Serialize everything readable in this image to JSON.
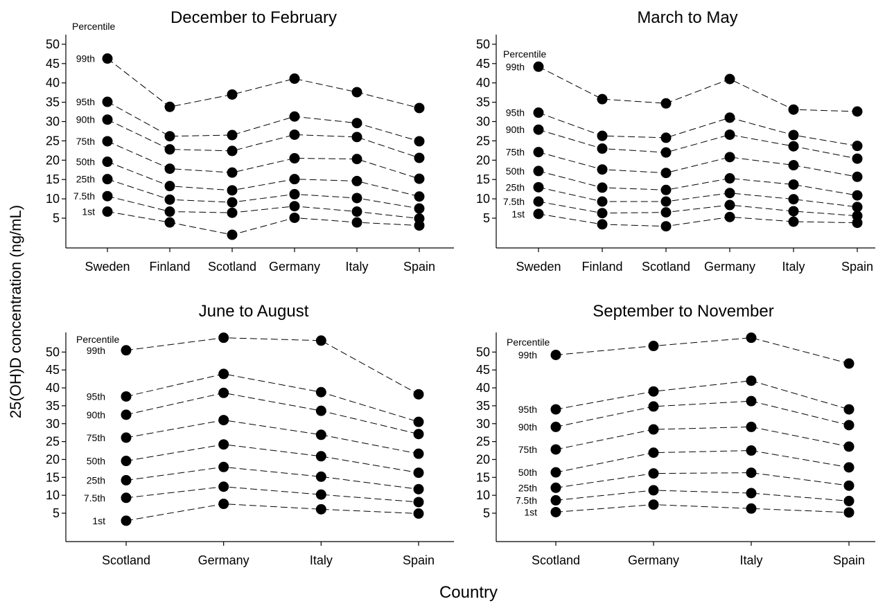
{
  "figure": {
    "ylabel": "25(OH)D concentration (ng/mL)",
    "xlabel": "Country",
    "percentile_heading": "Percentile"
  },
  "chart_data": [
    {
      "type": "line",
      "title": "December to February",
      "categories": [
        "Sweden",
        "Finland",
        "Scotland",
        "Germany",
        "Italy",
        "Spain"
      ],
      "yticks": [
        5,
        10,
        15,
        20,
        25,
        30,
        35,
        40,
        45,
        50
      ],
      "ylim": [
        0,
        52
      ],
      "grid": false,
      "series": [
        {
          "name": "99th",
          "values": [
            46.3,
            33.8,
            37.0,
            41.1,
            37.6,
            33.5
          ]
        },
        {
          "name": "95th",
          "values": [
            35.1,
            26.2,
            26.5,
            31.3,
            29.6,
            24.9
          ]
        },
        {
          "name": "90th",
          "values": [
            30.5,
            22.8,
            22.4,
            26.6,
            26.0,
            20.6
          ]
        },
        {
          "name": "75th",
          "values": [
            24.9,
            17.8,
            16.8,
            20.5,
            20.3,
            15.2
          ]
        },
        {
          "name": "50th",
          "values": [
            19.6,
            13.3,
            12.2,
            15.1,
            14.6,
            10.6
          ]
        },
        {
          "name": "25th",
          "values": [
            15.1,
            9.8,
            9.1,
            11.2,
            10.2,
            7.5
          ]
        },
        {
          "name": "7.5th",
          "values": [
            10.7,
            6.7,
            6.4,
            8.1,
            6.7,
            4.9
          ]
        },
        {
          "name": "1st",
          "values": [
            6.7,
            3.9,
            0.7,
            5.1,
            3.9,
            3.1
          ]
        }
      ]
    },
    {
      "type": "line",
      "title": "March to May",
      "categories": [
        "Sweden",
        "Finland",
        "Scotland",
        "Germany",
        "Italy",
        "Spain"
      ],
      "yticks": [
        5,
        10,
        15,
        20,
        25,
        30,
        35,
        40,
        45,
        50
      ],
      "ylim": [
        0,
        52
      ],
      "grid": false,
      "series": [
        {
          "name": "99th",
          "values": [
            44.2,
            35.8,
            34.7,
            41.0,
            33.1,
            32.6
          ]
        },
        {
          "name": "95th",
          "values": [
            32.3,
            26.3,
            25.8,
            31.0,
            26.5,
            23.7
          ]
        },
        {
          "name": "90th",
          "values": [
            27.9,
            23.0,
            22.0,
            26.6,
            23.6,
            20.4
          ]
        },
        {
          "name": "75th",
          "values": [
            22.1,
            17.6,
            16.7,
            20.8,
            18.7,
            15.7
          ]
        },
        {
          "name": "50th",
          "values": [
            17.2,
            12.9,
            12.3,
            15.3,
            13.7,
            10.9
          ]
        },
        {
          "name": "25th",
          "values": [
            13.0,
            9.3,
            9.3,
            11.5,
            9.9,
            7.9
          ]
        },
        {
          "name": "7.5th",
          "values": [
            9.3,
            6.3,
            6.5,
            8.4,
            6.8,
            5.6
          ]
        },
        {
          "name": "1st",
          "values": [
            6.1,
            3.4,
            2.9,
            5.3,
            4.1,
            3.8
          ]
        }
      ]
    },
    {
      "type": "line",
      "title": "June to August",
      "categories": [
        "Scotland",
        "Germany",
        "Italy",
        "Spain"
      ],
      "yticks": [
        5,
        10,
        15,
        20,
        25,
        30,
        35,
        40,
        45,
        50
      ],
      "ylim": [
        -2,
        55
      ],
      "grid": false,
      "series": [
        {
          "name": "99th",
          "values": [
            50.5,
            54.0,
            53.2,
            38.2
          ]
        },
        {
          "name": "95th",
          "values": [
            37.6,
            43.9,
            38.8,
            30.5
          ]
        },
        {
          "name": "90th",
          "values": [
            32.5,
            38.6,
            33.6,
            27.1
          ]
        },
        {
          "name": "75th",
          "values": [
            26.1,
            31.0,
            26.9,
            21.6
          ]
        },
        {
          "name": "50th",
          "values": [
            19.6,
            24.2,
            20.9,
            16.3
          ]
        },
        {
          "name": "25th",
          "values": [
            14.2,
            17.9,
            15.2,
            11.7
          ]
        },
        {
          "name": "7.5th",
          "values": [
            9.3,
            12.4,
            10.2,
            8.1
          ]
        },
        {
          "name": "1st",
          "values": [
            2.9,
            7.6,
            6.1,
            4.9
          ]
        }
      ]
    },
    {
      "type": "line",
      "title": "September to November",
      "categories": [
        "Scotland",
        "Germany",
        "Italy",
        "Spain"
      ],
      "yticks": [
        5,
        10,
        15,
        20,
        25,
        30,
        35,
        40,
        45,
        50
      ],
      "ylim": [
        -2,
        55
      ],
      "grid": false,
      "series": [
        {
          "name": "99th",
          "values": [
            49.2,
            51.7,
            54.0,
            46.8
          ]
        },
        {
          "name": "95th",
          "values": [
            34.0,
            39.0,
            42.0,
            34.0
          ]
        },
        {
          "name": "90th",
          "values": [
            29.1,
            34.8,
            36.3,
            29.6
          ]
        },
        {
          "name": "75th",
          "values": [
            22.8,
            28.4,
            29.1,
            23.6
          ]
        },
        {
          "name": "50th",
          "values": [
            16.4,
            21.9,
            22.5,
            17.8
          ]
        },
        {
          "name": "25th",
          "values": [
            12.1,
            16.1,
            16.3,
            12.7
          ]
        },
        {
          "name": "7.5th",
          "values": [
            8.6,
            11.4,
            10.6,
            8.4
          ]
        },
        {
          "name": "1st",
          "values": [
            5.3,
            7.4,
            6.3,
            5.2
          ]
        }
      ]
    }
  ]
}
